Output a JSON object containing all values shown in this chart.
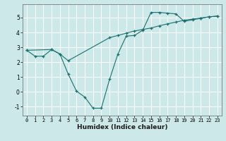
{
  "xlabel": "Humidex (Indice chaleur)",
  "bg_color": "#cce8e8",
  "line_color": "#1a7070",
  "grid_color": "#ffffff",
  "xlim": [
    -0.5,
    23.5
  ],
  "ylim": [
    -1.6,
    5.9
  ],
  "yticks": [
    -1,
    0,
    1,
    2,
    3,
    4,
    5
  ],
  "xticks": [
    0,
    1,
    2,
    3,
    4,
    5,
    6,
    7,
    8,
    9,
    10,
    11,
    12,
    13,
    14,
    15,
    16,
    17,
    18,
    19,
    20,
    21,
    22,
    23
  ],
  "line1_x": [
    0,
    1,
    2,
    3,
    4,
    5,
    6,
    7,
    8,
    9,
    10,
    11,
    12,
    13,
    14,
    15,
    16,
    17,
    18,
    19,
    20,
    21,
    22,
    23
  ],
  "line1_y": [
    2.8,
    2.4,
    2.4,
    2.85,
    2.55,
    1.2,
    0.05,
    -0.35,
    -1.1,
    -1.1,
    0.85,
    2.55,
    3.75,
    3.8,
    4.15,
    5.35,
    5.35,
    5.3,
    5.25,
    4.75,
    4.85,
    4.95,
    5.05,
    5.1
  ],
  "line2_x": [
    0,
    3,
    4,
    5,
    10,
    11,
    12,
    13,
    14,
    15,
    16,
    17,
    18,
    19,
    20,
    21,
    22,
    23
  ],
  "line2_y": [
    2.8,
    2.85,
    2.55,
    2.1,
    3.65,
    3.8,
    3.95,
    4.1,
    4.2,
    4.3,
    4.45,
    4.58,
    4.7,
    4.82,
    4.9,
    4.97,
    5.05,
    5.1
  ],
  "ylabel_fontsize": 5.5,
  "xlabel_fontsize": 6.5,
  "tick_fontsize": 5.0
}
